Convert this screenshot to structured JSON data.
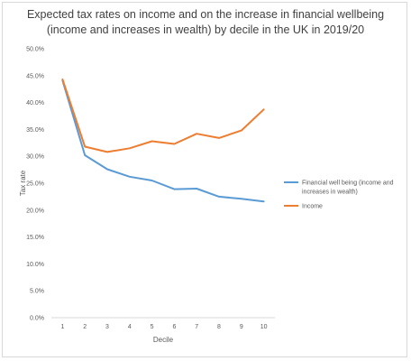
{
  "chart_data": {
    "type": "line",
    "title_lines": [
      "Expected tax rates on income and on the increase in financial wellbeing",
      "(income and increases in wealth) by decile in the UK in 2019/20"
    ],
    "xlabel": "Decile",
    "ylabel": "Tax rate",
    "categories": [
      "1",
      "2",
      "3",
      "4",
      "5",
      "6",
      "7",
      "8",
      "9",
      "10"
    ],
    "y_ticks": [
      "0.0%",
      "5.0%",
      "10.0%",
      "15.0%",
      "20.0%",
      "25.0%",
      "30.0%",
      "35.0%",
      "40.0%",
      "45.0%",
      "50.0%"
    ],
    "ylim": [
      0,
      0.5
    ],
    "grid": false,
    "legend_position": "right",
    "series": [
      {
        "name_lines": [
          "Financial well being (income and",
          "increases in wealth)"
        ],
        "color": "#5b9bd5",
        "values": [
          0.441,
          0.302,
          0.276,
          0.262,
          0.255,
          0.239,
          0.24,
          0.225,
          0.221,
          0.216
        ]
      },
      {
        "name_lines": [
          "Income"
        ],
        "color": "#ed7d31",
        "values": [
          0.443,
          0.318,
          0.308,
          0.315,
          0.328,
          0.323,
          0.342,
          0.334,
          0.348,
          0.387
        ]
      }
    ]
  }
}
